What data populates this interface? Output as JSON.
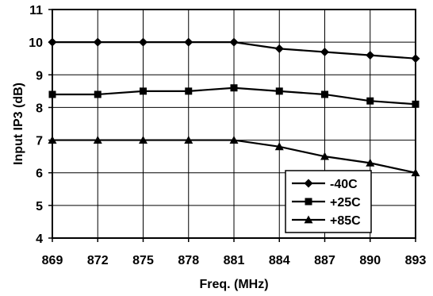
{
  "chart_data": {
    "type": "line",
    "xlabel": "Freq. (MHz)",
    "ylabel": "Input IP3 (dB)",
    "x": [
      869,
      872,
      875,
      878,
      881,
      884,
      887,
      890,
      893
    ],
    "x_tick_labels": [
      "869",
      "872",
      "875",
      "878",
      "881",
      "884",
      "887",
      "890",
      "893"
    ],
    "ylim": [
      4,
      11
    ],
    "y_ticks": [
      4,
      5,
      6,
      7,
      8,
      9,
      10,
      11
    ],
    "y_tick_labels": [
      "4",
      "5",
      "6",
      "7",
      "8",
      "9",
      "10",
      "11"
    ],
    "grid": true,
    "legend_position": "bottom-right",
    "series": [
      {
        "name": "-40C",
        "marker": "diamond",
        "values": [
          10,
          10,
          10,
          10,
          10,
          9.8,
          9.7,
          9.6,
          9.5
        ]
      },
      {
        "name": "+25C",
        "marker": "square",
        "values": [
          8.4,
          8.4,
          8.5,
          8.5,
          8.6,
          8.5,
          8.4,
          8.2,
          8.1
        ]
      },
      {
        "name": "+85C",
        "marker": "triangle",
        "values": [
          7,
          7,
          7,
          7,
          7,
          6.8,
          6.5,
          6.3,
          6.0
        ]
      }
    ]
  }
}
